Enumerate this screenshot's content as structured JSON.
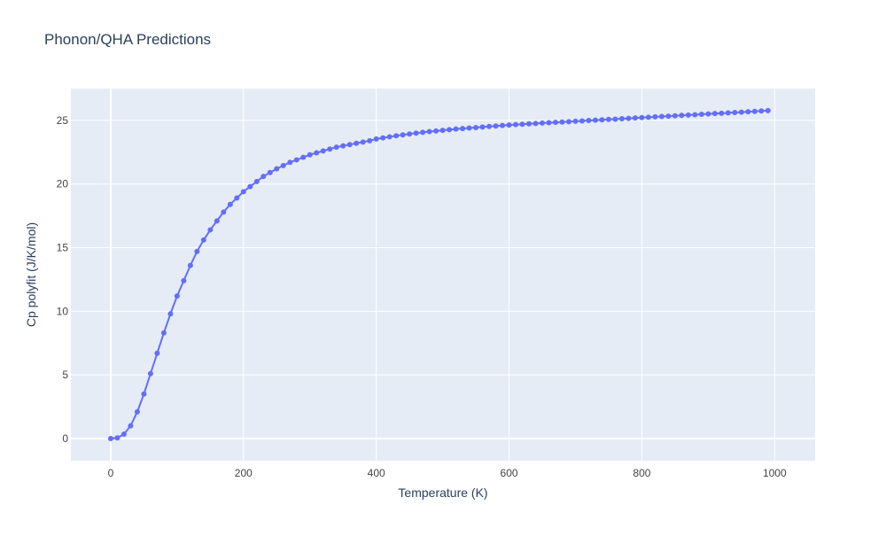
{
  "chart_data": {
    "type": "line",
    "title": "Phonon/QHA Predictions",
    "x_label": "Temperature (K)",
    "y_label": "Cp polyfit (J/K/mol)",
    "x": [
      0,
      10,
      20,
      30,
      40,
      50,
      60,
      70,
      80,
      90,
      100,
      110,
      120,
      130,
      140,
      150,
      160,
      170,
      180,
      190,
      200,
      210,
      220,
      230,
      240,
      250,
      260,
      270,
      280,
      290,
      300,
      310,
      320,
      330,
      340,
      350,
      360,
      370,
      380,
      390,
      400,
      410,
      420,
      430,
      440,
      450,
      460,
      470,
      480,
      490,
      500,
      510,
      520,
      530,
      540,
      550,
      560,
      570,
      580,
      590,
      600,
      610,
      620,
      630,
      640,
      650,
      660,
      670,
      680,
      690,
      700,
      710,
      720,
      730,
      740,
      750,
      760,
      770,
      780,
      790,
      800,
      810,
      820,
      830,
      840,
      850,
      860,
      870,
      880,
      890,
      900,
      910,
      920,
      930,
      940,
      950,
      960,
      970,
      980,
      990
    ],
    "series": [
      {
        "name": "Cp polyfit",
        "color": "#636efa",
        "values": [
          0,
          0.05,
          0.35,
          1.0,
          2.1,
          3.5,
          5.1,
          6.7,
          8.3,
          9.8,
          11.2,
          12.4,
          13.6,
          14.7,
          15.6,
          16.4,
          17.1,
          17.8,
          18.4,
          18.9,
          19.4,
          19.8,
          20.2,
          20.6,
          20.9,
          21.2,
          21.45,
          21.7,
          21.9,
          22.1,
          22.3,
          22.45,
          22.6,
          22.75,
          22.9,
          23.0,
          23.1,
          23.2,
          23.3,
          23.4,
          23.54,
          23.63,
          23.71,
          23.79,
          23.86,
          23.93,
          24.0,
          24.06,
          24.12,
          24.17,
          24.22,
          24.27,
          24.32,
          24.36,
          24.4,
          24.44,
          24.48,
          24.52,
          24.56,
          24.6,
          24.64,
          24.67,
          24.7,
          24.73,
          24.76,
          24.79,
          24.82,
          24.85,
          24.87,
          24.9,
          24.93,
          24.96,
          24.99,
          25.02,
          25.05,
          25.08,
          25.1,
          25.13,
          25.16,
          25.19,
          25.22,
          25.25,
          25.28,
          25.31,
          25.33,
          25.36,
          25.39,
          25.42,
          25.45,
          25.48,
          25.51,
          25.54,
          25.56,
          25.59,
          25.62,
          25.65,
          25.68,
          25.71,
          25.74,
          25.77
        ]
      }
    ],
    "xlim": [
      -60,
      1061
    ],
    "ylim": [
      -1.74,
      27.5
    ],
    "xticks": [
      0,
      200,
      400,
      600,
      800,
      1000
    ],
    "yticks": [
      0,
      5,
      10,
      15,
      20,
      25
    ],
    "grid": true
  }
}
